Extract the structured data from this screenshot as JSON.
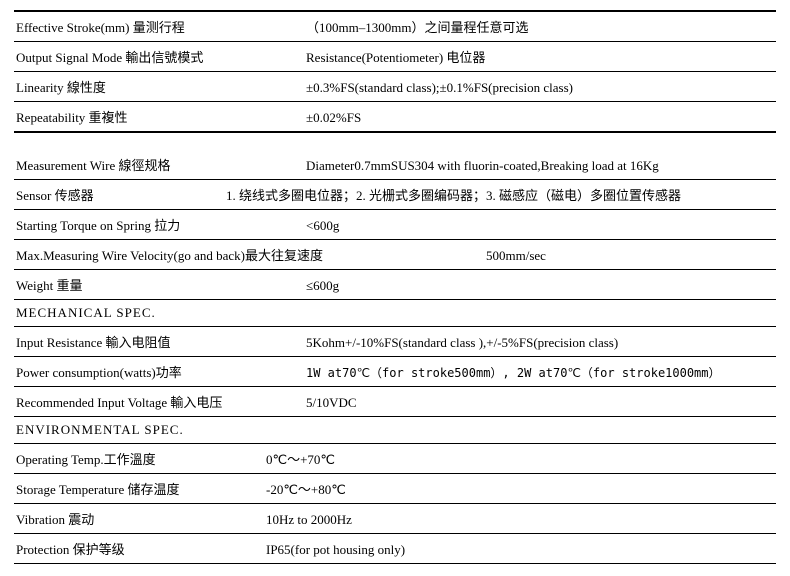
{
  "rows": [
    {
      "label": "Effective Stroke(mm) 量测行程",
      "value": "（100mm–1300mm）之间量程任意可选"
    },
    {
      "label": "Output Signal Mode 輸出信號模式",
      "value": "Resistance(Potentiometer) 电位器"
    },
    {
      "label": "Linearity 線性度",
      "value": "±0.3%FS(standard class);±0.1%FS(precision class)"
    },
    {
      "label": "Repeatability 重複性",
      "value": "±0.02%FS"
    }
  ],
  "rows2": [
    {
      "label": "Measurement Wire 線徑规格",
      "value": "Diameter0.7mmSUS304 with fluorin-coated,Breaking load at 16Kg"
    },
    {
      "label": "Sensor  传感器",
      "value": "1. 绕线式多圈电位器；2. 光栅式多圈编码器；3. 磁感应（磁电）多圈位置传感器"
    },
    {
      "label": "Starting Torque on Spring 拉力",
      "value": "<600g"
    },
    {
      "label": "Max.Measuring Wire Velocity(go and back)最大往复速度",
      "value": "500mm/sec"
    },
    {
      "label": "Weight 重量",
      "value": "≤600g"
    }
  ],
  "mech_header": "MECHANICAL   SPEC.",
  "rows3": [
    {
      "label": "Input Resistance 輸入电阻值",
      "value": "5Kohm+/-10%FS(standard class ),+/-5%FS(precision class)"
    },
    {
      "label": "Power consumption(watts)功率",
      "value": "1W at70℃（for stroke500mm）, 2W at70℃（for stroke1000mm）"
    },
    {
      "label": "Recommended Input Voltage 輸入电压",
      "value": "5/10VDC"
    }
  ],
  "env_header": "ENVIRONMENTAL   SPEC.",
  "rows4": [
    {
      "label": "Operating Temp.工作溫度",
      "value": "0℃～+70℃"
    },
    {
      "label": "Storage Temperature  储存温度",
      "value": "-20℃～+80℃"
    },
    {
      "label": "Vibration 震动",
      "value": "10Hz to 2000Hz"
    },
    {
      "label": "Protection 保护等级",
      "value": "IP65(for pot housing only)"
    }
  ]
}
